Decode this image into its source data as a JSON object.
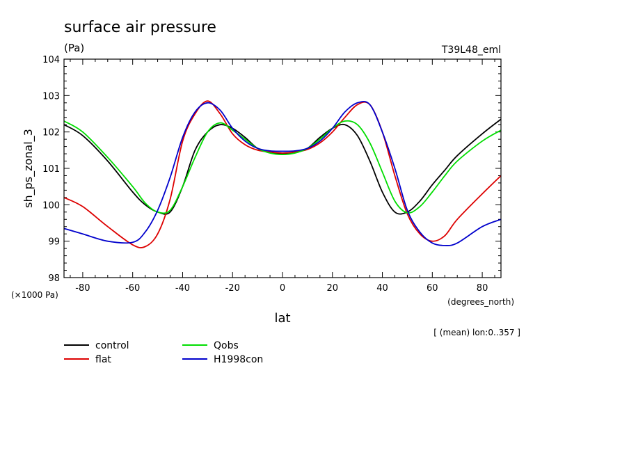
{
  "chart_data": {
    "type": "line",
    "title": "surface air pressure",
    "units": "(Pa)",
    "run_label": "T39L48_eml",
    "xlabel": "lat",
    "ylabel": "sh_ps_zonal_3",
    "x_units": "(degrees_north)",
    "y_scale_label": "(×1000 Pa)",
    "averaging_note": "[ (mean) lon:0..357 ]",
    "xlim": [
      -87.5,
      87.5
    ],
    "ylim": [
      98,
      104
    ],
    "x_ticks": [
      -80,
      -60,
      -40,
      -20,
      0,
      20,
      40,
      60,
      80
    ],
    "y_ticks": [
      98,
      99,
      100,
      101,
      102,
      103,
      104
    ],
    "x": [
      -87.5,
      -80,
      -70,
      -60,
      -55,
      -50,
      -45,
      -40,
      -35,
      -30,
      -25,
      -20,
      -15,
      -10,
      -5,
      0,
      5,
      10,
      15,
      20,
      25,
      30,
      35,
      40,
      45,
      50,
      55,
      60,
      65,
      70,
      80,
      87.5
    ],
    "series": [
      {
        "name": "control",
        "color": "#000000",
        "values": [
          102.2,
          101.9,
          101.2,
          100.35,
          100.0,
          99.8,
          99.8,
          100.5,
          101.5,
          102.0,
          102.2,
          102.1,
          101.85,
          101.55,
          101.43,
          101.4,
          101.43,
          101.55,
          101.85,
          102.1,
          102.2,
          101.9,
          101.2,
          100.35,
          99.8,
          99.8,
          100.1,
          100.55,
          100.95,
          101.35,
          101.95,
          102.35
        ]
      },
      {
        "name": "flat",
        "color": "#dd0000",
        "values": [
          100.2,
          99.95,
          99.4,
          98.9,
          98.85,
          99.2,
          100.15,
          101.75,
          102.5,
          102.85,
          102.5,
          101.95,
          101.65,
          101.5,
          101.45,
          101.42,
          101.45,
          101.52,
          101.7,
          102.0,
          102.4,
          102.75,
          102.75,
          102.0,
          100.8,
          99.75,
          99.2,
          99.0,
          99.15,
          99.6,
          100.3,
          100.8
        ]
      },
      {
        "name": "Qobs",
        "color": "#00dd00",
        "values": [
          102.3,
          102.0,
          101.3,
          100.5,
          100.05,
          99.8,
          99.85,
          100.5,
          101.3,
          102.0,
          102.25,
          102.05,
          101.8,
          101.55,
          101.42,
          101.38,
          101.42,
          101.55,
          101.8,
          102.1,
          102.3,
          102.2,
          101.7,
          100.9,
          100.1,
          99.78,
          99.95,
          100.35,
          100.8,
          101.2,
          101.75,
          102.05
        ]
      },
      {
        "name": "H1998con",
        "color": "#0000cc",
        "values": [
          99.35,
          99.2,
          99.0,
          98.97,
          99.25,
          99.85,
          100.75,
          101.85,
          102.55,
          102.8,
          102.6,
          102.1,
          101.75,
          101.55,
          101.48,
          101.47,
          101.48,
          101.55,
          101.75,
          102.1,
          102.55,
          102.8,
          102.75,
          102.0,
          101.0,
          99.85,
          99.25,
          98.95,
          98.88,
          98.95,
          99.4,
          99.6
        ]
      }
    ]
  }
}
